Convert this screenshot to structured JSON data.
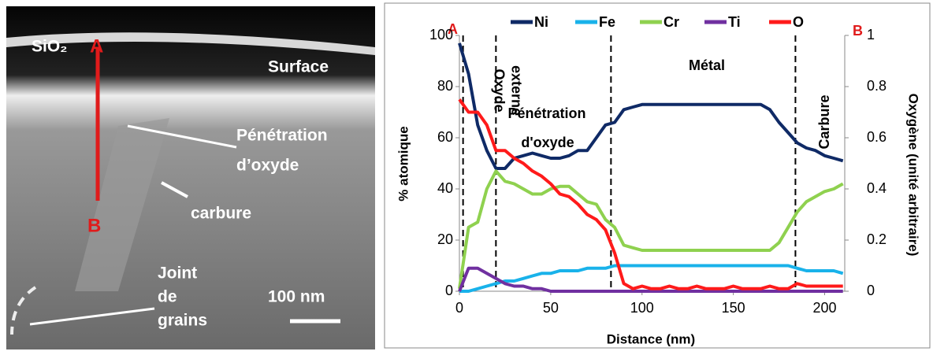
{
  "micrograph": {
    "sio2": "SiO₂",
    "a": "A",
    "b": "B",
    "surface": "Surface",
    "penetration": [
      "Pénétration",
      "d’oxyde"
    ],
    "carbure": "carbure",
    "joint": [
      "Joint",
      "de",
      "grains"
    ],
    "scale": "100 nm"
  },
  "chart_data": {
    "type": "line",
    "x_label": "Distance (nm)",
    "y_label": "% atomique",
    "y2_label": "Oxygène (unité arbitraire)",
    "point_a": "A",
    "point_b": "B",
    "annotations": {
      "oxyde_externe": [
        "Oxyde",
        "externe"
      ],
      "penetration": [
        "Pénétration",
        "d'oxyde"
      ],
      "metal": "Métal",
      "carbure": "Carbure"
    },
    "dividers": [
      2,
      20,
      83,
      184
    ],
    "xlim": [
      0,
      211
    ],
    "xticks": [
      0,
      50,
      100,
      150,
      200
    ],
    "ylim": [
      0,
      100
    ],
    "yticks": [
      0,
      20,
      40,
      60,
      80,
      100
    ],
    "y2lim": [
      0,
      1
    ],
    "y2ticks": [
      0,
      0.2,
      0.4,
      0.6,
      0.8,
      1
    ],
    "legend": "top",
    "x": [
      0,
      5,
      10,
      15,
      20,
      25,
      30,
      35,
      40,
      45,
      50,
      55,
      60,
      65,
      70,
      75,
      80,
      85,
      90,
      95,
      100,
      105,
      110,
      115,
      120,
      125,
      130,
      135,
      140,
      145,
      150,
      155,
      160,
      165,
      170,
      175,
      180,
      185,
      190,
      195,
      200,
      205,
      210
    ],
    "series": [
      {
        "name": "Ni",
        "color": "#0f2a66",
        "values": [
          97,
          85,
          65,
          55,
          48,
          48,
          52,
          53,
          54,
          53,
          52,
          52,
          53,
          55,
          55,
          60,
          65,
          66,
          71,
          72,
          73,
          73,
          73,
          73,
          73,
          73,
          73,
          73,
          73,
          73,
          73,
          73,
          73,
          73,
          71,
          66,
          62,
          58,
          56,
          55,
          53,
          52,
          51
        ]
      },
      {
        "name": "Fe",
        "color": "#19b2ea",
        "values": [
          0,
          0,
          1,
          2,
          3,
          4,
          4,
          5,
          6,
          7,
          7,
          8,
          8,
          8,
          9,
          9,
          9,
          10,
          10,
          10,
          10,
          10,
          10,
          10,
          10,
          10,
          10,
          10,
          10,
          10,
          10,
          10,
          10,
          10,
          10,
          10,
          10,
          9,
          8,
          8,
          8,
          8,
          7
        ]
      },
      {
        "name": "Cr",
        "color": "#8fd14f",
        "values": [
          1,
          25,
          27,
          40,
          47,
          43,
          42,
          40,
          38,
          38,
          40,
          41,
          41,
          38,
          35,
          34,
          28,
          25,
          18,
          17,
          16,
          16,
          16,
          16,
          16,
          16,
          16,
          16,
          16,
          16,
          16,
          16,
          16,
          16,
          16,
          19,
          25,
          31,
          35,
          37,
          39,
          40,
          42
        ]
      },
      {
        "name": "Ti",
        "color": "#7030a0",
        "values": [
          0,
          9,
          9,
          7,
          5,
          3,
          2,
          2,
          1,
          1,
          0,
          0,
          0,
          0,
          0,
          0,
          0,
          0,
          0,
          0,
          0,
          0,
          0,
          0,
          0,
          0,
          0,
          0,
          0,
          0,
          0,
          0,
          0,
          0,
          0,
          0,
          0,
          0,
          0,
          0,
          0,
          0,
          0
        ]
      },
      {
        "name": "O",
        "color": "#ff1a1a",
        "axis": "y2",
        "values": [
          0.75,
          0.7,
          0.7,
          0.65,
          0.55,
          0.55,
          0.52,
          0.5,
          0.47,
          0.45,
          0.42,
          0.38,
          0.37,
          0.34,
          0.3,
          0.28,
          0.24,
          0.15,
          0.03,
          0.01,
          0.02,
          0.01,
          0.01,
          0.02,
          0.01,
          0.01,
          0.02,
          0.01,
          0.01,
          0.01,
          0.02,
          0.01,
          0.01,
          0.01,
          0.02,
          0.01,
          0.01,
          0.03,
          0.02,
          0.02,
          0.02,
          0.02,
          0.02
        ]
      }
    ]
  }
}
